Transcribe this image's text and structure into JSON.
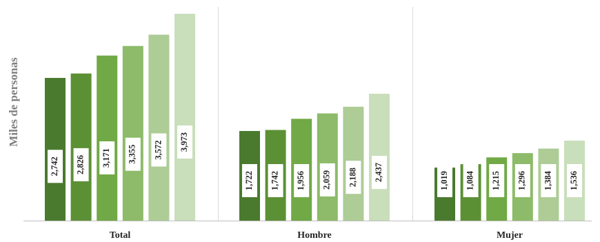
{
  "chart_data": {
    "type": "bar",
    "ylabel": "Miles de personas",
    "categories": [
      "Total",
      "Hombre",
      "Mujer"
    ],
    "series": [
      {
        "values": [
          2742,
          1722,
          1019
        ],
        "labels": [
          "2,742",
          "1,722",
          "1,019"
        ],
        "color": "#4a7a2e"
      },
      {
        "values": [
          2826,
          1742,
          1084
        ],
        "labels": [
          "2,826",
          "1,742",
          "1,084"
        ],
        "color": "#5c9035"
      },
      {
        "values": [
          3171,
          1956,
          1215
        ],
        "labels": [
          "3,171",
          "1,956",
          "1,215"
        ],
        "color": "#70a945"
      },
      {
        "values": [
          3355,
          2059,
          1296
        ],
        "labels": [
          "3,355",
          "2,059",
          "1,296"
        ],
        "color": "#8dbb69"
      },
      {
        "values": [
          3572,
          2188,
          1384
        ],
        "labels": [
          "3,572",
          "2,188",
          "1,384"
        ],
        "color": "#adcc96"
      },
      {
        "values": [
          3973,
          2437,
          1536
        ],
        "labels": [
          "3,973",
          "2,437",
          "1,536"
        ],
        "color": "#c9debb"
      }
    ],
    "ylim": [
      0,
      4000
    ],
    "grid": false,
    "legend": "none"
  }
}
